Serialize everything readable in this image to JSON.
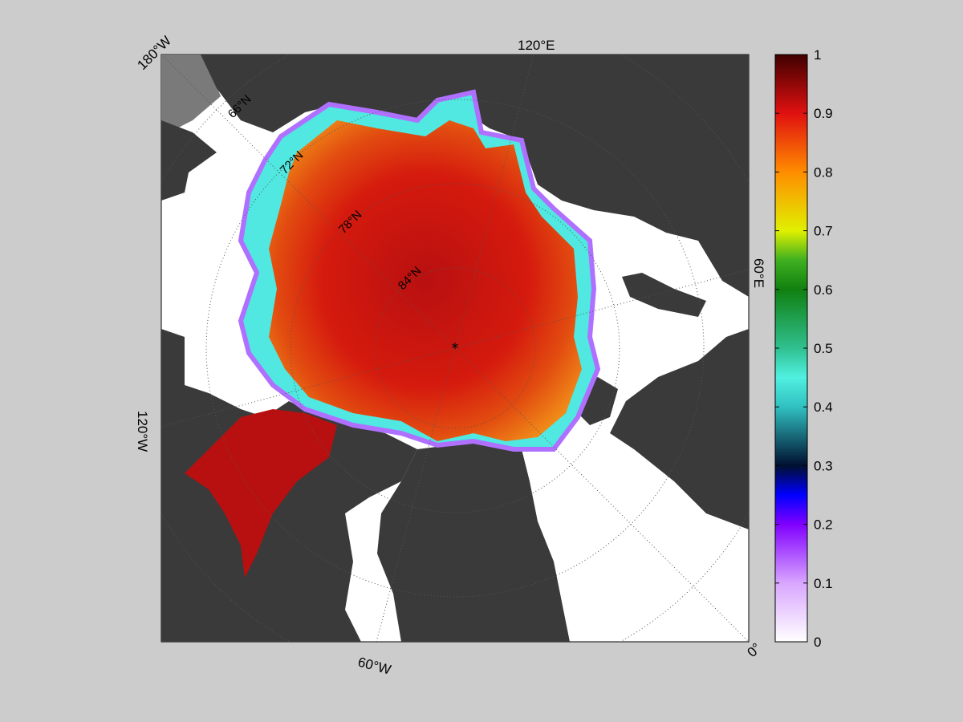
{
  "map": {
    "edge_labels": [
      {
        "id": "lon-180w",
        "text": "180°W"
      },
      {
        "id": "lon-120e",
        "text": "120°E"
      },
      {
        "id": "lon-60e",
        "text": "60°E"
      },
      {
        "id": "lon-120w",
        "text": "120°W"
      },
      {
        "id": "lon-60w",
        "text": "60°W"
      },
      {
        "id": "lon-0",
        "text": "0°"
      }
    ],
    "lat_labels": [
      {
        "id": "lat-66n",
        "text": "66°N"
      },
      {
        "id": "lat-72n",
        "text": "72°N"
      },
      {
        "id": "lat-78n",
        "text": "78°N"
      },
      {
        "id": "lat-84n",
        "text": "84°N"
      }
    ],
    "colors": {
      "figure_background": "#cccccc",
      "land": "#3a3a3a",
      "land_outside": "#7a7a7a",
      "open_water": "#ffffff",
      "grid": "#555555"
    }
  },
  "colorbar": {
    "min": 0,
    "max": 1,
    "ticks": [
      {
        "value": 0,
        "label": "0"
      },
      {
        "value": 0.1,
        "label": "0.1"
      },
      {
        "value": 0.2,
        "label": "0.2"
      },
      {
        "value": 0.3,
        "label": "0.3"
      },
      {
        "value": 0.4,
        "label": "0.4"
      },
      {
        "value": 0.5,
        "label": "0.5"
      },
      {
        "value": 0.6,
        "label": "0.6"
      },
      {
        "value": 0.7,
        "label": "0.7"
      },
      {
        "value": 0.8,
        "label": "0.8"
      },
      {
        "value": 0.9,
        "label": "0.9"
      },
      {
        "value": 1,
        "label": "1"
      }
    ],
    "stops": [
      {
        "value": 0.0,
        "color": "#ffffff"
      },
      {
        "value": 0.1,
        "color": "#d9a6ff"
      },
      {
        "value": 0.2,
        "color": "#8000ff"
      },
      {
        "value": 0.25,
        "color": "#0000ff"
      },
      {
        "value": 0.3,
        "color": "#001030"
      },
      {
        "value": 0.4,
        "color": "#30c0c0"
      },
      {
        "value": 0.45,
        "color": "#50f0e0"
      },
      {
        "value": 0.5,
        "color": "#30c090"
      },
      {
        "value": 0.6,
        "color": "#108010"
      },
      {
        "value": 0.65,
        "color": "#40b020"
      },
      {
        "value": 0.7,
        "color": "#e0f000"
      },
      {
        "value": 0.8,
        "color": "#ff8c00"
      },
      {
        "value": 0.9,
        "color": "#e01010"
      },
      {
        "value": 1.0,
        "color": "#400000"
      }
    ]
  }
}
